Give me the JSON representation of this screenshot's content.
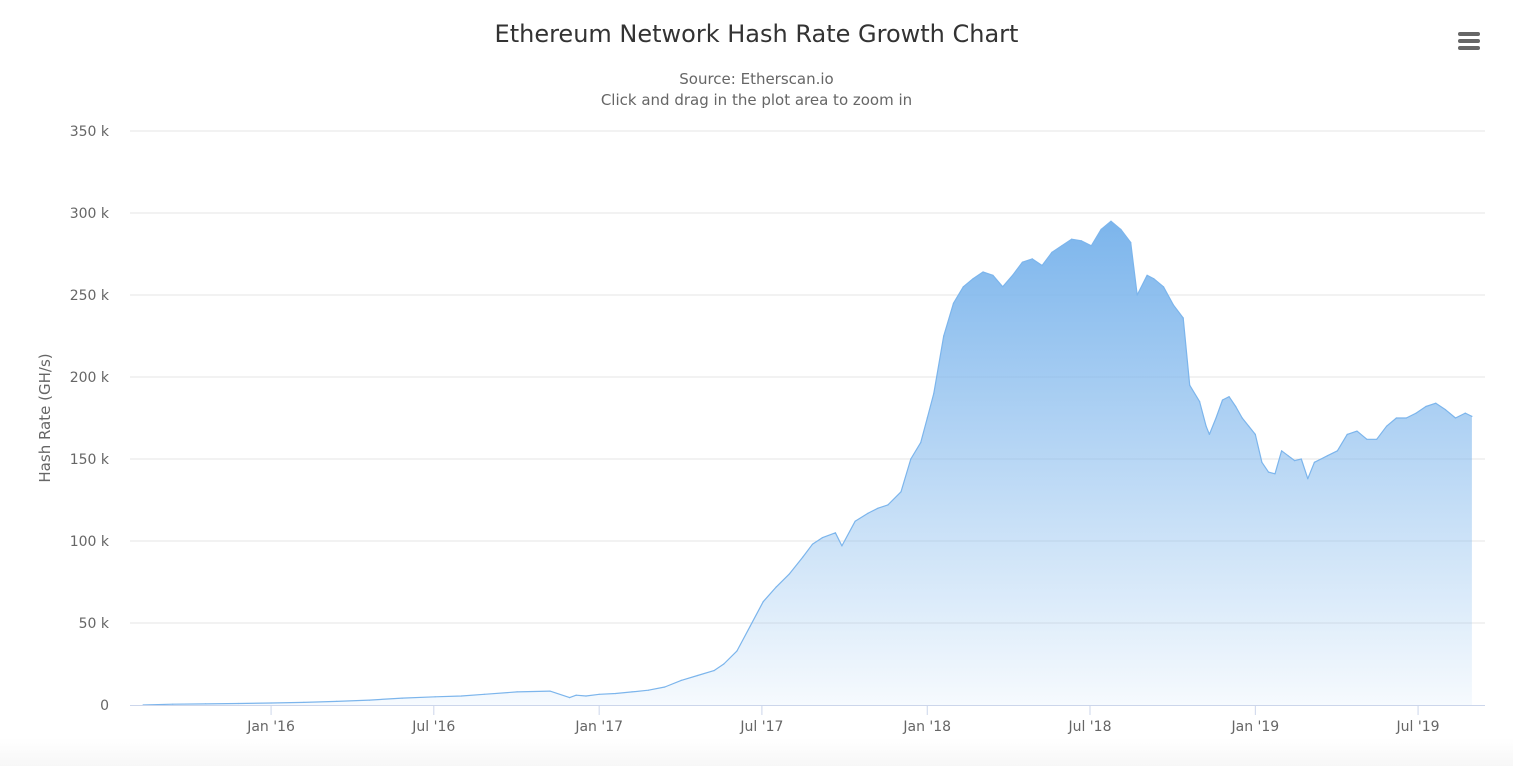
{
  "chart_data": {
    "type": "area",
    "title": "Ethereum Network Hash Rate Growth Chart",
    "subtitle": [
      "Source: Etherscan.io",
      "Click and drag in the plot area to zoom in"
    ],
    "xlabel": "",
    "ylabel": "Hash Rate (GH/s)",
    "xlim": [
      2015.57,
      2019.7
    ],
    "ylim": [
      0,
      350000
    ],
    "y_ticks": [
      0,
      50000,
      100000,
      150000,
      200000,
      250000,
      300000,
      350000
    ],
    "y_tick_labels": [
      "0",
      "50 k",
      "100 k",
      "150 k",
      "200 k",
      "250 k",
      "300 k",
      "350 k"
    ],
    "x_ticks": [
      2016.0,
      2016.496,
      2017.0,
      2017.496,
      2018.0,
      2018.496,
      2019.0,
      2019.496
    ],
    "x_tick_labels": [
      "Jan '16",
      "Jul '16",
      "Jan '17",
      "Jul '17",
      "Jan '18",
      "Jul '18",
      "Jan '19",
      "Jul '19"
    ],
    "grid": true,
    "legend": "none",
    "series": [
      {
        "name": "Hash Rate",
        "color": "#7cb5ec",
        "x": [
          2015.61,
          2015.7,
          2015.8,
          2015.9,
          2016.0,
          2016.1,
          2016.2,
          2016.3,
          2016.4,
          2016.5,
          2016.58,
          2016.65,
          2016.75,
          2016.85,
          2016.91,
          2016.93,
          2016.96,
          2017.0,
          2017.05,
          2017.1,
          2017.15,
          2017.2,
          2017.25,
          2017.3,
          2017.35,
          2017.38,
          2017.42,
          2017.46,
          2017.5,
          2017.54,
          2017.58,
          2017.62,
          2017.65,
          2017.68,
          2017.72,
          2017.74,
          2017.78,
          2017.82,
          2017.85,
          2017.88,
          2017.92,
          2017.95,
          2017.98,
          2018.0,
          2018.02,
          2018.05,
          2018.08,
          2018.11,
          2018.14,
          2018.17,
          2018.2,
          2018.23,
          2018.26,
          2018.29,
          2018.32,
          2018.35,
          2018.38,
          2018.41,
          2018.44,
          2018.47,
          2018.5,
          2018.53,
          2018.56,
          2018.59,
          2018.62,
          2018.64,
          2018.67,
          2018.69,
          2018.72,
          2018.75,
          2018.78,
          2018.8,
          2018.83,
          2018.85,
          2018.86,
          2018.88,
          2018.9,
          2018.92,
          2018.94,
          2018.96,
          2018.98,
          2019.0,
          2019.02,
          2019.04,
          2019.06,
          2019.08,
          2019.1,
          2019.12,
          2019.14,
          2019.16,
          2019.18,
          2019.2,
          2019.22,
          2019.25,
          2019.28,
          2019.31,
          2019.34,
          2019.37,
          2019.4,
          2019.43,
          2019.46,
          2019.49,
          2019.52,
          2019.55,
          2019.58,
          2019.61,
          2019.64,
          2019.66
        ],
        "values": [
          0,
          500,
          700,
          900,
          1200,
          1600,
          2200,
          3000,
          4200,
          5000,
          5500,
          6500,
          8000,
          8500,
          4500,
          6000,
          5500,
          6500,
          7000,
          8000,
          9000,
          11000,
          15000,
          18000,
          21000,
          25000,
          33000,
          48000,
          63000,
          72000,
          80000,
          90000,
          98000,
          102000,
          105000,
          97000,
          112000,
          117000,
          120000,
          122000,
          130000,
          150000,
          160000,
          175000,
          190000,
          225000,
          245000,
          255000,
          260000,
          264000,
          262000,
          255000,
          262000,
          270000,
          272000,
          268000,
          276000,
          280000,
          284000,
          283000,
          280000,
          290000,
          295000,
          290000,
          282000,
          250000,
          262000,
          260000,
          255000,
          244000,
          236000,
          195000,
          185000,
          170000,
          165000,
          175000,
          186000,
          188000,
          182000,
          175000,
          170000,
          165000,
          148000,
          142000,
          141000,
          155000,
          152000,
          149000,
          150000,
          138000,
          148000,
          150000,
          152000,
          155000,
          165000,
          167000,
          162000,
          162000,
          170000,
          175000,
          175000,
          178000,
          182000,
          184000,
          180000,
          175000,
          178000,
          176000
        ]
      }
    ]
  },
  "toolbar": {
    "menu_icon": "hamburger-menu-icon"
  }
}
